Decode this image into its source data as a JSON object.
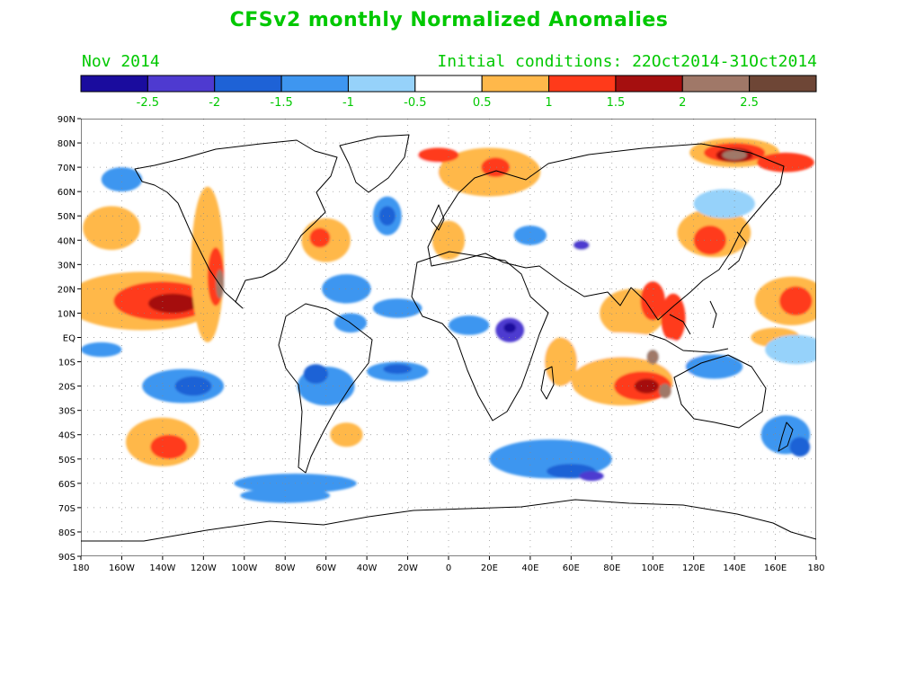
{
  "header": {
    "title": "CFSv2 monthly Normalized Anomalies",
    "month": "Nov 2014",
    "initial_conditions": "Initial conditions: 22Oct2014-31Oct2014"
  },
  "colorbar": {
    "colors": [
      "#1a0c9e",
      "#4e3ad0",
      "#1e62d6",
      "#3e96f0",
      "#96d2fa",
      "#ffffff",
      "#ffb84a",
      "#ff3a1a",
      "#a50f0f",
      "#a07868",
      "#6e4636"
    ],
    "labels": [
      "-2.5",
      "-2",
      "-1.5",
      "-1",
      "-0.5",
      "0.5",
      "1",
      "1.5",
      "2",
      "2.5"
    ]
  },
  "axes": {
    "lat_labels": [
      "90N",
      "80N",
      "70N",
      "60N",
      "50N",
      "40N",
      "30N",
      "20N",
      "10N",
      "EQ",
      "10S",
      "20S",
      "30S",
      "40S",
      "50S",
      "60S",
      "70S",
      "80S",
      "90S"
    ],
    "lon_labels": [
      "180",
      "160W",
      "140W",
      "120W",
      "100W",
      "80W",
      "60W",
      "40W",
      "20W",
      "0",
      "20E",
      "40E",
      "60E",
      "80E",
      "100E",
      "120E",
      "140E",
      "160E",
      "180"
    ]
  },
  "anomalies": [
    {
      "lon": -150,
      "lat": 15,
      "rx": 38,
      "ry": 12,
      "level": 6
    },
    {
      "lon": -140,
      "lat": 15,
      "rx": 24,
      "ry": 8,
      "level": 7
    },
    {
      "lon": -135,
      "lat": 14,
      "rx": 12,
      "ry": 4,
      "level": 8
    },
    {
      "lon": -118,
      "lat": 30,
      "rx": 8,
      "ry": 32,
      "level": 6
    },
    {
      "lon": -114,
      "lat": 25,
      "rx": 4,
      "ry": 12,
      "level": 7
    },
    {
      "lon": -112,
      "lat": 22,
      "rx": 2,
      "ry": 6,
      "level": 9
    },
    {
      "lon": -165,
      "lat": 45,
      "rx": 14,
      "ry": 9,
      "level": 6
    },
    {
      "lon": -60,
      "lat": 40,
      "rx": 12,
      "ry": 9,
      "level": 6
    },
    {
      "lon": -63,
      "lat": 41,
      "rx": 5,
      "ry": 4,
      "level": 7
    },
    {
      "lon": -140,
      "lat": -43,
      "rx": 18,
      "ry": 10,
      "level": 6
    },
    {
      "lon": -137,
      "lat": -45,
      "rx": 9,
      "ry": 5,
      "level": 7
    },
    {
      "lon": -50,
      "lat": -40,
      "rx": 8,
      "ry": 5,
      "level": 6
    },
    {
      "lon": -30,
      "lat": -28,
      "rx": 20,
      "ry": 6,
      "level": 5
    },
    {
      "lon": -20,
      "lat": 68,
      "rx": 18,
      "ry": 8,
      "level": 5
    },
    {
      "lon": 0,
      "lat": 40,
      "rx": 8,
      "ry": 8,
      "level": 6
    },
    {
      "lon": 20,
      "lat": 68,
      "rx": 25,
      "ry": 10,
      "level": 6
    },
    {
      "lon": 23,
      "lat": 70,
      "rx": 7,
      "ry": 4,
      "level": 7
    },
    {
      "lon": -5,
      "lat": 75,
      "rx": 10,
      "ry": 3,
      "level": 7
    },
    {
      "lon": 40,
      "lat": 85,
      "rx": 35,
      "ry": 5,
      "level": 5
    },
    {
      "lon": 140,
      "lat": 76,
      "rx": 22,
      "ry": 6,
      "level": 6
    },
    {
      "lon": 140,
      "lat": 76,
      "rx": 15,
      "ry": 4,
      "level": 7
    },
    {
      "lon": 140,
      "lat": 75,
      "rx": 9,
      "ry": 3,
      "level": 8
    },
    {
      "lon": 140,
      "lat": 75,
      "rx": 6,
      "ry": 2,
      "level": 9
    },
    {
      "lon": 165,
      "lat": 72,
      "rx": 14,
      "ry": 4,
      "level": 7
    },
    {
      "lon": 130,
      "lat": 43,
      "rx": 18,
      "ry": 10,
      "level": 6
    },
    {
      "lon": 128,
      "lat": 40,
      "rx": 8,
      "ry": 6,
      "level": 7
    },
    {
      "lon": 70,
      "lat": 42,
      "rx": 15,
      "ry": 8,
      "level": 5
    },
    {
      "lon": 90,
      "lat": 10,
      "rx": 16,
      "ry": 10,
      "level": 6
    },
    {
      "lon": 100,
      "lat": 15,
      "rx": 6,
      "ry": 8,
      "level": 7
    },
    {
      "lon": 110,
      "lat": 8,
      "rx": 6,
      "ry": 10,
      "level": 7
    },
    {
      "lon": 80,
      "lat": -10,
      "rx": 45,
      "ry": 12,
      "level": 5
    },
    {
      "lon": 85,
      "lat": -18,
      "rx": 25,
      "ry": 10,
      "level": 6
    },
    {
      "lon": 95,
      "lat": -20,
      "rx": 14,
      "ry": 6,
      "level": 7
    },
    {
      "lon": 97,
      "lat": -20,
      "rx": 6,
      "ry": 3,
      "level": 8
    },
    {
      "lon": 106,
      "lat": -22,
      "rx": 3,
      "ry": 3,
      "level": 9
    },
    {
      "lon": 100,
      "lat": -8,
      "rx": 3,
      "ry": 3,
      "level": 9
    },
    {
      "lon": 55,
      "lat": -10,
      "rx": 8,
      "ry": 10,
      "level": 6
    },
    {
      "lon": 168,
      "lat": 15,
      "rx": 18,
      "ry": 10,
      "level": 6
    },
    {
      "lon": 170,
      "lat": 15,
      "rx": 8,
      "ry": 6,
      "level": 7
    },
    {
      "lon": 160,
      "lat": 0,
      "rx": 12,
      "ry": 4,
      "level": 6
    },
    {
      "lon": 0,
      "lat": -80,
      "rx": 55,
      "ry": 4,
      "level": 5
    },
    {
      "lon": 20,
      "lat": -72,
      "rx": 30,
      "ry": 2,
      "level": 5
    },
    {
      "lon": 30,
      "lat": 3,
      "rx": 7,
      "ry": 5,
      "level": 1
    },
    {
      "lon": 30,
      "lat": 4,
      "rx": 3,
      "ry": 2,
      "level": 0
    },
    {
      "lon": 10,
      "lat": 5,
      "rx": 10,
      "ry": 4,
      "level": 3
    },
    {
      "lon": -130,
      "lat": -20,
      "rx": 20,
      "ry": 7,
      "level": 3
    },
    {
      "lon": -125,
      "lat": -20,
      "rx": 9,
      "ry": 4,
      "level": 2
    },
    {
      "lon": -60,
      "lat": -20,
      "rx": 14,
      "ry": 8,
      "level": 3
    },
    {
      "lon": -65,
      "lat": -15,
      "rx": 6,
      "ry": 4,
      "level": 2
    },
    {
      "lon": -25,
      "lat": -14,
      "rx": 15,
      "ry": 4,
      "level": 3
    },
    {
      "lon": -25,
      "lat": -13,
      "rx": 7,
      "ry": 2,
      "level": 2
    },
    {
      "lon": -30,
      "lat": 50,
      "rx": 7,
      "ry": 8,
      "level": 3
    },
    {
      "lon": -30,
      "lat": 50,
      "rx": 4,
      "ry": 4,
      "level": 2
    },
    {
      "lon": -50,
      "lat": 20,
      "rx": 12,
      "ry": 6,
      "level": 3
    },
    {
      "lon": -48,
      "lat": 6,
      "rx": 8,
      "ry": 4,
      "level": 3
    },
    {
      "lon": -25,
      "lat": 12,
      "rx": 12,
      "ry": 4,
      "level": 3
    },
    {
      "lon": 50,
      "lat": -50,
      "rx": 30,
      "ry": 8,
      "level": 3
    },
    {
      "lon": 60,
      "lat": -55,
      "rx": 12,
      "ry": 3,
      "level": 2
    },
    {
      "lon": 70,
      "lat": -57,
      "rx": 6,
      "ry": 2,
      "level": 1
    },
    {
      "lon": -75,
      "lat": -60,
      "rx": 30,
      "ry": 4,
      "level": 3
    },
    {
      "lon": -80,
      "lat": -65,
      "rx": 22,
      "ry": 3,
      "level": 3
    },
    {
      "lon": 130,
      "lat": -12,
      "rx": 14,
      "ry": 5,
      "level": 3
    },
    {
      "lon": 135,
      "lat": 55,
      "rx": 15,
      "ry": 6,
      "level": 4
    },
    {
      "lon": 165,
      "lat": -40,
      "rx": 12,
      "ry": 8,
      "level": 3
    },
    {
      "lon": 172,
      "lat": -45,
      "rx": 5,
      "ry": 4,
      "level": 2
    },
    {
      "lon": 40,
      "lat": 42,
      "rx": 8,
      "ry": 4,
      "level": 3
    },
    {
      "lon": 65,
      "lat": 38,
      "rx": 4,
      "ry": 2,
      "level": 1
    },
    {
      "lon": 170,
      "lat": -5,
      "rx": 15,
      "ry": 6,
      "level": 4
    },
    {
      "lon": -160,
      "lat": 65,
      "rx": 10,
      "ry": 5,
      "level": 3
    },
    {
      "lon": -170,
      "lat": -5,
      "rx": 10,
      "ry": 3,
      "level": 3
    }
  ]
}
